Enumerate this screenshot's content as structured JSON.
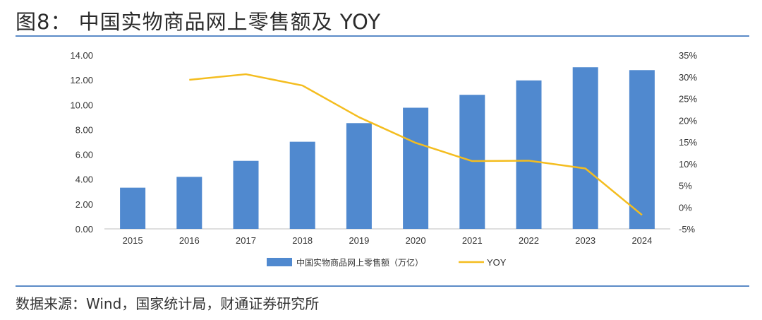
{
  "title": "图8：  中国实物商品网上零售额及 YOY",
  "source": "数据来源：Wind，国家统计局，财通证券研究所",
  "colors": {
    "bar": "#5089cf",
    "line": "#f4bd1f",
    "rule": "#5b8bc7"
  },
  "chart_data": {
    "type": "bar",
    "categories": [
      "2015",
      "2016",
      "2017",
      "2018",
      "2019",
      "2020",
      "2021",
      "2022",
      "2023",
      "2024"
    ],
    "series": [
      {
        "name": "中国实物商品网上零售额（万亿）",
        "type": "bar",
        "axis": "left",
        "values": [
          3.32,
          4.19,
          5.48,
          7.02,
          8.52,
          9.76,
          10.8,
          11.96,
          13.02,
          12.79
        ]
      },
      {
        "name": "YOY",
        "type": "line",
        "axis": "right",
        "values": [
          null,
          29.3,
          30.6,
          28.0,
          20.7,
          14.8,
          10.6,
          10.7,
          8.9,
          -1.8
        ]
      }
    ],
    "ylim": [
      0,
      14
    ],
    "y_ticks": [
      "0.00",
      "2.00",
      "4.00",
      "6.00",
      "8.00",
      "10.00",
      "12.00",
      "14.00"
    ],
    "y2lim": [
      -5,
      35
    ],
    "y2_ticks": [
      "-5%",
      "0%",
      "5%",
      "10%",
      "15%",
      "20%",
      "25%",
      "30%",
      "35%"
    ],
    "legend_position": "bottom",
    "grid": false
  }
}
